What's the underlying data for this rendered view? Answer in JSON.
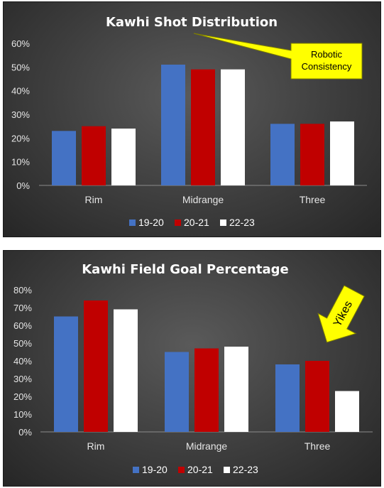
{
  "series_colors": [
    "#4472c4",
    "#c00000",
    "#ffffff"
  ],
  "chart_data": [
    {
      "type": "bar",
      "title": "Kawhi Shot Distribution",
      "categories": [
        "Rim",
        "Midrange",
        "Three"
      ],
      "series": [
        {
          "name": "19-20",
          "values": [
            23,
            51,
            26
          ]
        },
        {
          "name": "20-21",
          "values": [
            25,
            49,
            26
          ]
        },
        {
          "name": "22-23",
          "values": [
            24,
            49,
            27
          ]
        }
      ],
      "yticks": [
        "0%",
        "10%",
        "20%",
        "30%",
        "40%",
        "50%",
        "60%"
      ],
      "ylim": [
        0,
        60
      ],
      "ytick_step": 10,
      "grid": false,
      "legend": "bottom",
      "annotation": {
        "line1": "Robotic",
        "line2": "Consistency"
      }
    },
    {
      "type": "bar",
      "title": "Kawhi Field Goal Percentage",
      "categories": [
        "Rim",
        "Midrange",
        "Three"
      ],
      "series": [
        {
          "name": "19-20",
          "values": [
            65,
            45,
            38
          ]
        },
        {
          "name": "20-21",
          "values": [
            74,
            47,
            40
          ]
        },
        {
          "name": "22-23",
          "values": [
            69,
            48,
            23
          ]
        }
      ],
      "yticks": [
        "0%",
        "10%",
        "20%",
        "30%",
        "40%",
        "50%",
        "60%",
        "70%",
        "80%"
      ],
      "ylim": [
        0,
        80
      ],
      "ytick_step": 10,
      "grid": false,
      "legend": "bottom",
      "annotation": {
        "text": "Yikes"
      }
    }
  ]
}
